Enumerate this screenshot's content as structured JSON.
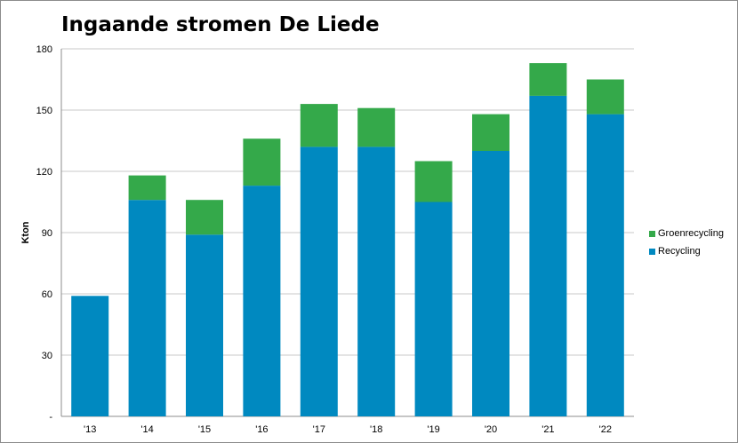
{
  "colors": {
    "recycling": "#0089C0",
    "groenrecycling": "#34A94A",
    "grid": "#c8c8c8",
    "axis": "#8c8c8c"
  },
  "chart_data": {
    "type": "bar",
    "stacked": true,
    "title": "Ingaande stromen De Liede",
    "xlabel": "",
    "ylabel": "Kton",
    "ylim": [
      0,
      180
    ],
    "yticks": [
      {
        "value": 0,
        "label": "-"
      },
      {
        "value": 30,
        "label": "30"
      },
      {
        "value": 60,
        "label": "60"
      },
      {
        "value": 90,
        "label": "90"
      },
      {
        "value": 120,
        "label": "120"
      },
      {
        "value": 150,
        "label": "150"
      },
      {
        "value": 180,
        "label": "180"
      }
    ],
    "grid": true,
    "legend_position": "right",
    "categories": [
      "'13",
      "'14",
      "'15",
      "'16",
      "'17",
      "'18",
      "'19",
      "'20",
      "'21",
      "'22"
    ],
    "series": [
      {
        "name": "Recycling",
        "color": "#0089C0",
        "values": [
          59,
          106,
          89,
          113,
          132,
          132,
          105,
          130,
          157,
          148
        ]
      },
      {
        "name": "Groenrecycling",
        "color": "#34A94A",
        "values": [
          0,
          12,
          17,
          23,
          21,
          19,
          20,
          18,
          16,
          17
        ]
      }
    ]
  },
  "legend": {
    "items": [
      {
        "label": "Groenrecycling",
        "color": "#34A94A"
      },
      {
        "label": "Recycling",
        "color": "#0089C0"
      }
    ]
  }
}
